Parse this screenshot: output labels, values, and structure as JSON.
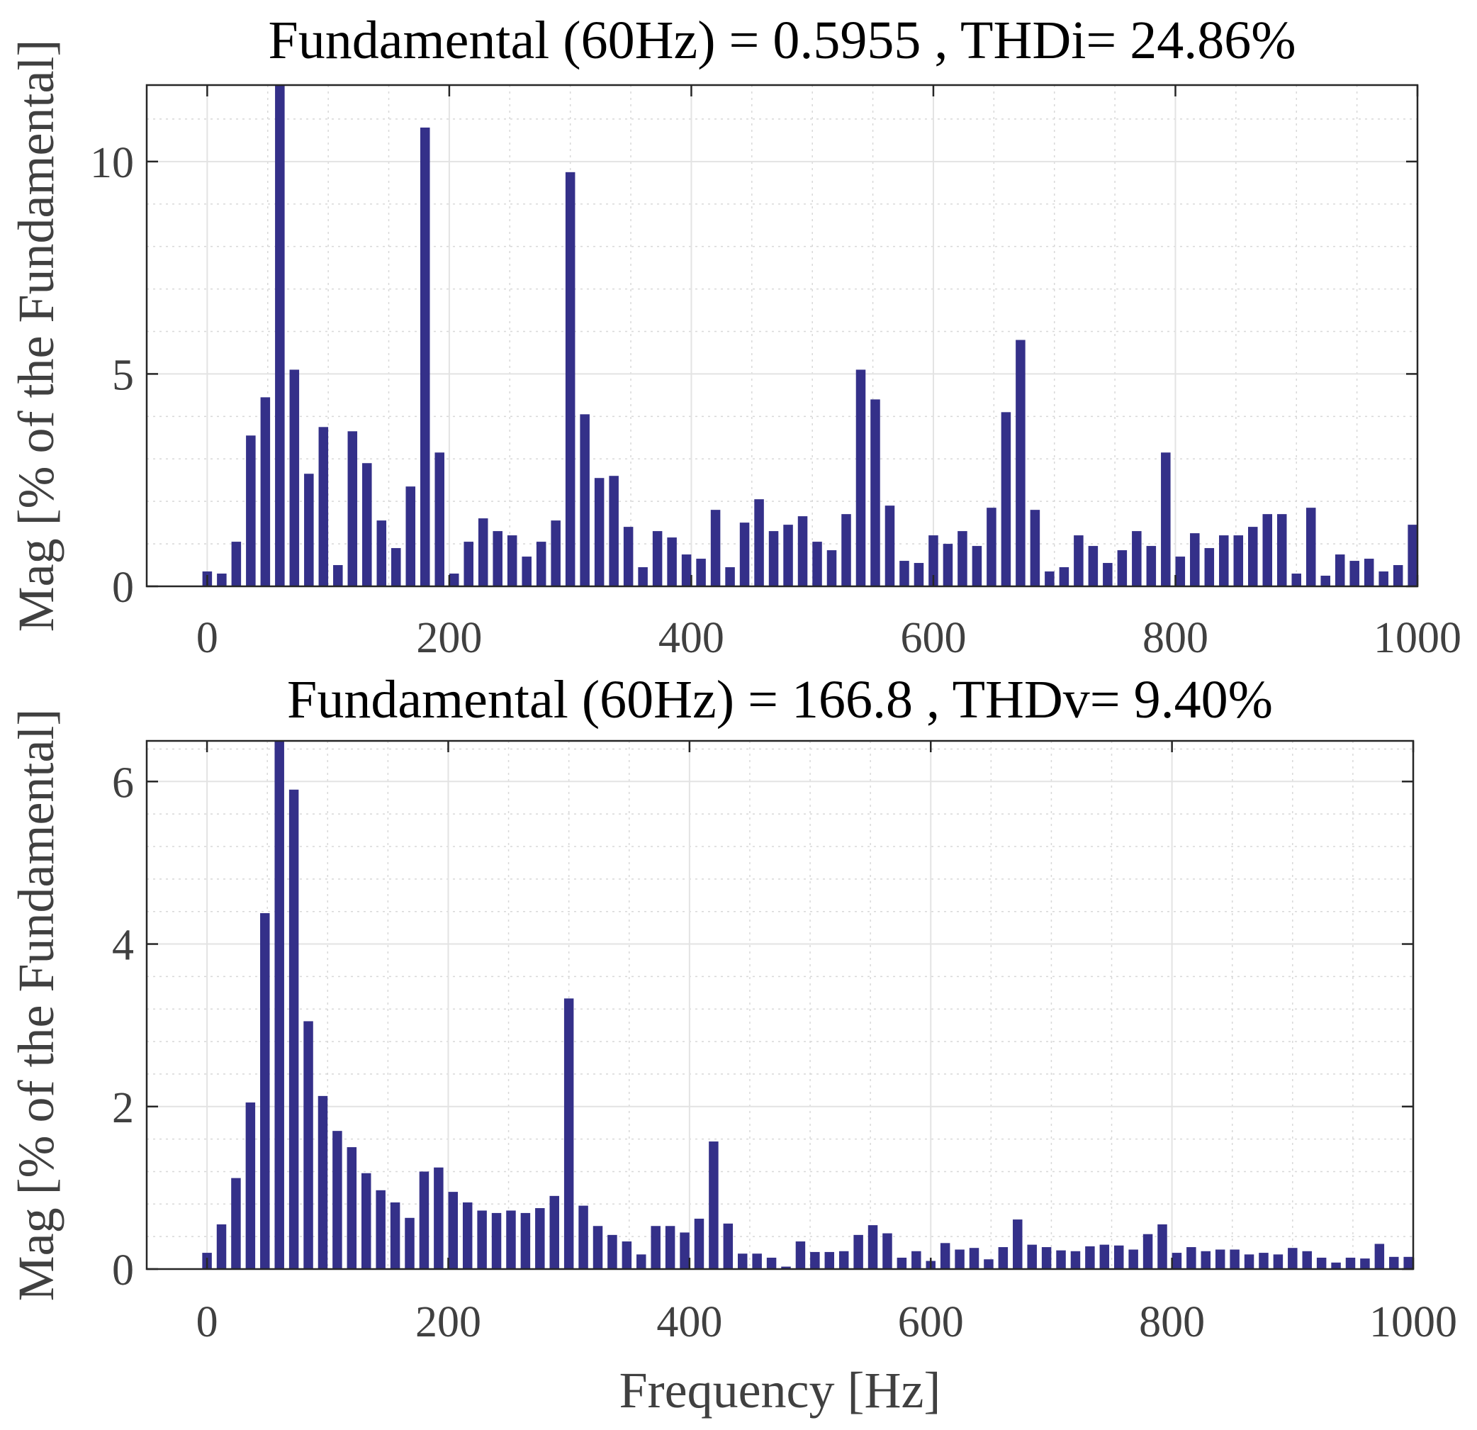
{
  "chart_data": [
    {
      "type": "bar",
      "title": "Fundamental (60Hz) = 0.5955 , THDi= 24.86%",
      "xlabel": "",
      "ylabel": "Mag [% of the Fundamental]",
      "xlim": [
        -50,
        1000
      ],
      "ylim": [
        0,
        11.8
      ],
      "xticks": [
        0,
        200,
        400,
        600,
        800,
        1000
      ],
      "yticks": [
        0,
        5,
        10
      ],
      "grid": true,
      "bar_color": "#343089",
      "x": [
        0,
        12,
        24,
        36,
        48,
        60,
        72,
        84,
        96,
        108,
        120,
        132,
        144,
        156,
        168,
        180,
        192,
        204,
        216,
        228,
        240,
        252,
        264,
        276,
        288,
        300,
        312,
        324,
        336,
        348,
        360,
        372,
        384,
        396,
        408,
        420,
        432,
        444,
        456,
        468,
        480,
        492,
        504,
        516,
        528,
        540,
        552,
        564,
        576,
        588,
        600,
        612,
        624,
        636,
        648,
        660,
        672,
        684,
        696,
        708,
        720,
        732,
        744,
        756,
        768,
        780,
        792,
        804,
        816,
        828,
        840,
        852,
        864,
        876,
        888,
        900,
        912,
        924,
        936,
        948,
        960,
        972,
        984,
        996
      ],
      "values": [
        0.35,
        0.3,
        1.05,
        3.55,
        4.45,
        11.8,
        5.1,
        2.65,
        3.75,
        0.5,
        3.65,
        2.9,
        1.55,
        0.9,
        2.35,
        10.8,
        3.15,
        0.3,
        1.05,
        1.6,
        1.3,
        1.2,
        0.7,
        1.05,
        1.55,
        9.75,
        4.05,
        2.55,
        2.6,
        1.4,
        0.45,
        1.3,
        1.15,
        0.75,
        0.65,
        1.8,
        0.45,
        1.5,
        2.05,
        1.3,
        1.45,
        1.65,
        1.05,
        0.85,
        1.7,
        5.1,
        4.4,
        1.9,
        0.6,
        0.55,
        1.2,
        1.0,
        1.3,
        0.95,
        1.85,
        4.1,
        5.8,
        1.8,
        0.35,
        0.45,
        1.2,
        0.95,
        0.55,
        0.85,
        1.3,
        0.95,
        3.15,
        0.7,
        1.25,
        0.9,
        1.2,
        1.2,
        1.4,
        1.7,
        1.7,
        0.3,
        1.85,
        0.25,
        0.75,
        0.6,
        0.65,
        0.35,
        0.5,
        1.45
      ]
    },
    {
      "type": "bar",
      "title": "Fundamental (60Hz) = 166.8 , THDv= 9.40%",
      "xlabel": "Frequency [Hz]",
      "ylabel": "Mag [% of the Fundamental]",
      "xlim": [
        -50,
        1000
      ],
      "ylim": [
        0,
        6.5
      ],
      "xticks": [
        0,
        200,
        400,
        600,
        800,
        1000
      ],
      "yticks": [
        0,
        2,
        4,
        6
      ],
      "grid": true,
      "bar_color": "#343089",
      "x": [
        0,
        12,
        24,
        36,
        48,
        60,
        72,
        84,
        96,
        108,
        120,
        132,
        144,
        156,
        168,
        180,
        192,
        204,
        216,
        228,
        240,
        252,
        264,
        276,
        288,
        300,
        312,
        324,
        336,
        348,
        360,
        372,
        384,
        396,
        408,
        420,
        432,
        444,
        456,
        468,
        480,
        492,
        504,
        516,
        528,
        540,
        552,
        564,
        576,
        588,
        600,
        612,
        624,
        636,
        648,
        660,
        672,
        684,
        696,
        708,
        720,
        732,
        744,
        756,
        768,
        780,
        792,
        804,
        816,
        828,
        840,
        852,
        864,
        876,
        888,
        900,
        912,
        924,
        936,
        948,
        960,
        972,
        984,
        996
      ],
      "values": [
        0.2,
        0.55,
        1.12,
        2.05,
        4.38,
        6.5,
        5.9,
        3.05,
        2.13,
        1.7,
        1.5,
        1.18,
        0.97,
        0.82,
        0.63,
        1.2,
        1.25,
        0.95,
        0.82,
        0.72,
        0.69,
        0.72,
        0.69,
        0.75,
        0.9,
        3.33,
        0.78,
        0.53,
        0.42,
        0.34,
        0.18,
        0.53,
        0.53,
        0.45,
        0.62,
        1.57,
        0.56,
        0.19,
        0.19,
        0.14,
        0.03,
        0.34,
        0.21,
        0.21,
        0.22,
        0.42,
        0.54,
        0.44,
        0.14,
        0.22,
        0.1,
        0.32,
        0.24,
        0.26,
        0.12,
        0.27,
        0.61,
        0.3,
        0.27,
        0.23,
        0.22,
        0.28,
        0.3,
        0.29,
        0.24,
        0.43,
        0.55,
        0.2,
        0.27,
        0.22,
        0.24,
        0.24,
        0.18,
        0.2,
        0.18,
        0.26,
        0.22,
        0.14,
        0.08,
        0.14,
        0.13,
        0.31,
        0.15,
        0.15
      ]
    }
  ]
}
